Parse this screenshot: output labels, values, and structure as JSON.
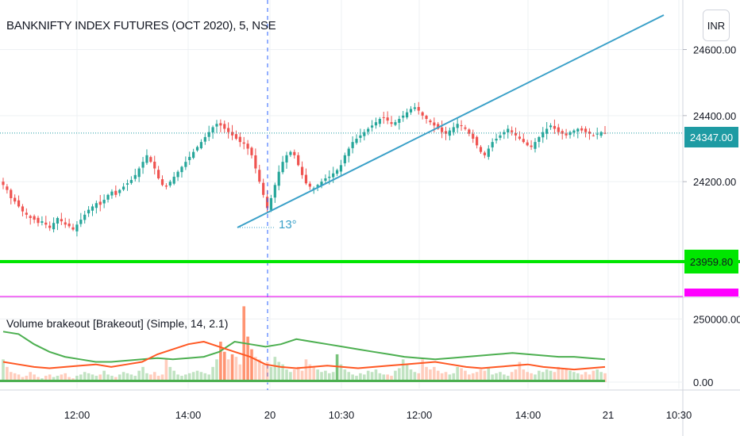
{
  "title": "BANKNIFTY INDEX FUTURES (OCT 2020), 5, NSE",
  "currency_button": "INR",
  "last_price_tag": "24347.00",
  "level_tag": "23959.80",
  "trendline_angle": "13°",
  "volume_indicator_title": "Volume brakeout [Brakeout] (Simple, 14, 2.1)",
  "colors": {
    "up": "#26a69a",
    "down": "#ef5350",
    "trendline": "#3aa0c8",
    "level_line": "#00e600",
    "magenta_line": "#ff00ff",
    "vol_green": "#4caf50",
    "vol_orange": "#ff5722",
    "last_price": "#1e9ba3"
  },
  "chart_data": [
    {
      "type": "candlestick",
      "title": "BANKNIFTY INDEX FUTURES (OCT 2020), 5, NSE",
      "x_ticks": [
        "12:00",
        "14:00",
        "20",
        "10:30",
        "12:00",
        "14:00",
        "21",
        "10:30"
      ],
      "y_ticks": [
        "24200.00",
        "24400.00",
        "24600.00"
      ],
      "ylim": [
        23850,
        24750
      ],
      "grid": true,
      "session_break": "20",
      "horizontal_levels": [
        23959.8
      ],
      "last_price": 24347.0,
      "trendline": {
        "from": 24080,
        "to": 24900,
        "angle_label": "13°"
      },
      "closes": [
        24190,
        24175,
        24150,
        24140,
        24125,
        24110,
        24100,
        24090,
        24085,
        24075,
        24080,
        24070,
        24060,
        24075,
        24090,
        24080,
        24070,
        24065,
        24055,
        24070,
        24085,
        24100,
        24115,
        24125,
        24135,
        24130,
        24145,
        24160,
        24170,
        24160,
        24175,
        24185,
        24195,
        24205,
        24220,
        24240,
        24260,
        24280,
        24260,
        24240,
        24210,
        24190,
        24185,
        24200,
        24215,
        24230,
        24245,
        24260,
        24275,
        24290,
        24305,
        24320,
        24335,
        24350,
        24365,
        24375,
        24370,
        24360,
        24350,
        24340,
        24330,
        24320,
        24315,
        24300,
        24280,
        24240,
        24200,
        24160,
        24120,
        24150,
        24190,
        24230,
        24260,
        24280,
        24290,
        24280,
        24250,
        24220,
        24195,
        24185,
        24180,
        24190,
        24200,
        24210,
        24215,
        24225,
        24235,
        24250,
        24280,
        24300,
        24320,
        24330,
        24340,
        24350,
        24360,
        24370,
        24380,
        24390,
        24395,
        24385,
        24375,
        24380,
        24390,
        24400,
        24410,
        24420,
        24425,
        24415,
        24400,
        24390,
        24380,
        24370,
        24360,
        24350,
        24345,
        24355,
        24365,
        24375,
        24370,
        24360,
        24345,
        24330,
        24310,
        24290,
        24280,
        24300,
        24320,
        24330,
        24340,
        24350,
        24360,
        24350,
        24340,
        24330,
        24320,
        24310,
        24305,
        24320,
        24335,
        24350,
        24360,
        24370,
        24360,
        24350,
        24345,
        24340,
        24350,
        24355,
        24360,
        24355,
        24350,
        24345,
        24340,
        24345,
        24350,
        24347
      ],
      "panes": [
        "price",
        "volume"
      ]
    },
    {
      "type": "bar",
      "title": "Volume brakeout [Brakeout] (Simple, 14, 2.1)",
      "y_ticks": [
        "0.00",
        "250000.00"
      ],
      "ylim": [
        0,
        320000
      ],
      "values": [
        90000,
        60000,
        40000,
        35000,
        30000,
        20000,
        25000,
        40000,
        30000,
        20000,
        15000,
        25000,
        30000,
        20000,
        25000,
        30000,
        35000,
        20000,
        15000,
        25000,
        30000,
        40000,
        35000,
        30000,
        25000,
        30000,
        45000,
        30000,
        25000,
        20000,
        30000,
        40000,
        35000,
        30000,
        25000,
        45000,
        60000,
        35000,
        30000,
        40000,
        25000,
        30000,
        90000,
        60000,
        45000,
        30000,
        25000,
        30000,
        35000,
        40000,
        45000,
        40000,
        35000,
        30000,
        60000,
        90000,
        160000,
        120000,
        90000,
        110000,
        100000,
        70000,
        300000,
        180000,
        130000,
        100000,
        90000,
        70000,
        80000,
        60000,
        100000,
        80000,
        70000,
        50000,
        40000,
        50000,
        60000,
        45000,
        90000,
        70000,
        60000,
        50000,
        40000,
        45000,
        35000,
        40000,
        110000,
        70000,
        50000,
        40000,
        30000,
        25000,
        35000,
        30000,
        45000,
        40000,
        50000,
        35000,
        30000,
        30000,
        25000,
        45000,
        55000,
        90000,
        70000,
        50000,
        40000,
        35000,
        90000,
        60000,
        50000,
        60000,
        45000,
        35000,
        40000,
        30000,
        35000,
        60000,
        55000,
        45000,
        30000,
        35000,
        40000,
        50000,
        45000,
        55000,
        30000,
        35000,
        40000,
        30000,
        25000,
        40000,
        50000,
        80000,
        50000,
        40000,
        35000,
        30000,
        45000,
        40000,
        50000,
        45000,
        40000,
        60000,
        50000,
        55000,
        45000,
        40000,
        35000,
        30000,
        40000,
        30000,
        45000,
        50000,
        40000,
        35000
      ],
      "series": [
        {
          "name": "MA (green)",
          "values": [
            200000,
            190000,
            150000,
            120000,
            100000,
            90000,
            80000,
            80000,
            85000,
            90000,
            95000,
            90000,
            95000,
            100000,
            120000,
            160000,
            150000,
            140000,
            150000,
            170000,
            160000,
            150000,
            140000,
            130000,
            120000,
            110000,
            100000,
            95000,
            90000,
            95000,
            100000,
            105000,
            110000,
            115000,
            110000,
            105000,
            100000,
            100000,
            95000,
            90000
          ]
        },
        {
          "name": "MA (orange)",
          "values": [
            80000,
            70000,
            60000,
            55000,
            60000,
            65000,
            70000,
            60000,
            70000,
            80000,
            110000,
            130000,
            150000,
            160000,
            140000,
            120000,
            100000,
            70000,
            60000,
            55000,
            60000,
            65000,
            60000,
            55000,
            60000,
            65000,
            70000,
            75000,
            80000,
            70000,
            60000,
            55000,
            60000,
            65000,
            70000,
            60000,
            55000,
            50000,
            55000,
            60000
          ]
        }
      ]
    }
  ]
}
